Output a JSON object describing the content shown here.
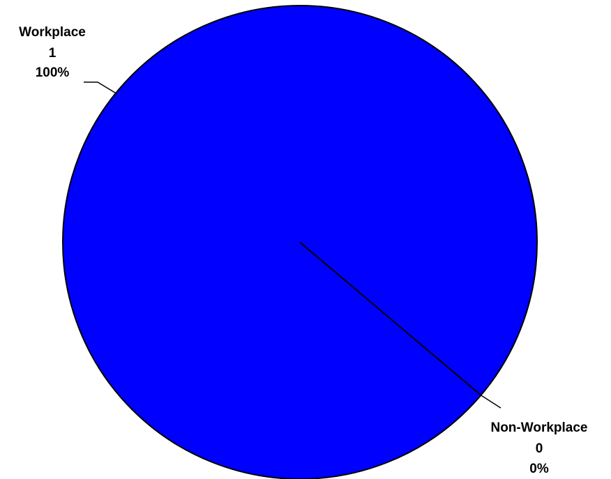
{
  "chart_data": {
    "type": "pie",
    "categories": [
      "Workplace",
      "Non-Workplace"
    ],
    "values": [
      1,
      0
    ],
    "value_labels": [
      "100%",
      "0%"
    ],
    "color": "#0000ff"
  }
}
